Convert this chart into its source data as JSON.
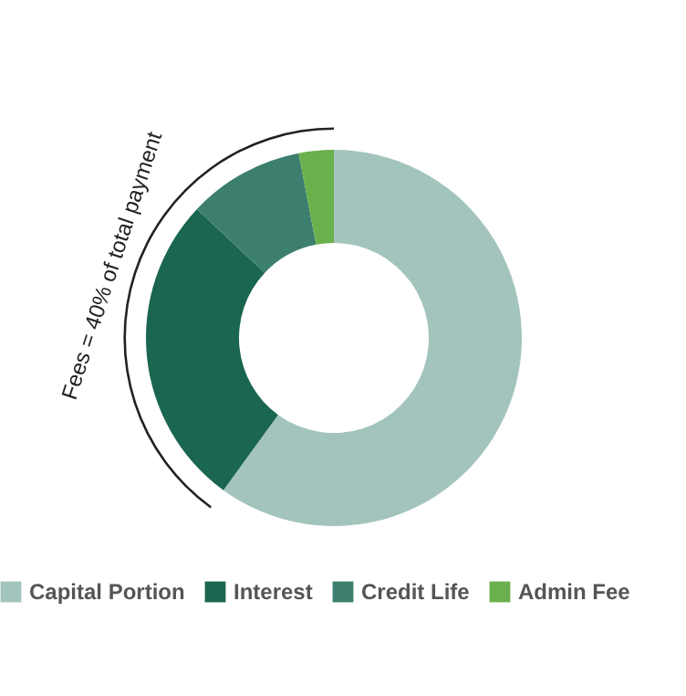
{
  "chart_data": {
    "type": "donut",
    "categories": [
      "Capital Portion",
      "Interest",
      "Credit Life",
      "Admin Fee"
    ],
    "values": [
      60,
      27,
      10,
      3
    ],
    "colors": [
      "#a3c4bc",
      "#1a6650",
      "#3d7f6e",
      "#6ab04c"
    ],
    "annotations": [
      "Fees = 40% of total payment"
    ],
    "legend": "bottom"
  }
}
